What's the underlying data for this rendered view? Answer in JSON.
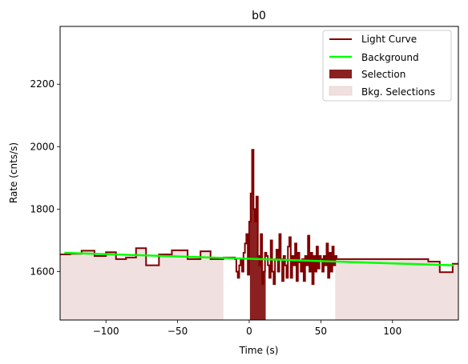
{
  "chart_data": {
    "type": "line",
    "title": "b0",
    "xlabel": "Time (s)",
    "ylabel": "Rate (cnts/s)",
    "xlim": [
      -132,
      146
    ],
    "ylim": [
      1445,
      2385
    ],
    "xticks": [
      -100,
      -50,
      0,
      50,
      100
    ],
    "xtick_labels": [
      "−100",
      "−50",
      "0",
      "50",
      "100"
    ],
    "yticks": [
      1600,
      1800,
      2000,
      2200
    ],
    "ytick_labels": [
      "1600",
      "1800",
      "2000",
      "2200"
    ],
    "grid": false,
    "legend_position": "top-right",
    "legend": [
      {
        "key": "light_curve",
        "label": "Light Curve"
      },
      {
        "key": "background",
        "label": "Background"
      },
      {
        "key": "selection",
        "label": "Selection"
      },
      {
        "key": "bkg_selections",
        "label": "Bkg. Selections"
      }
    ],
    "colors": {
      "light_curve": "#800000",
      "background": "#00ff00",
      "selection": "#8b2020",
      "bkg_selections": "#f0e0e0"
    },
    "background_line": {
      "x": [
        -129,
        143
      ],
      "y": [
        1660,
        1620
      ]
    },
    "selection_interval": [
      0.5,
      11.5
    ],
    "bkg_selections": [
      [
        -132,
        -18
      ],
      [
        60,
        146
      ]
    ],
    "light_curve": {
      "x": [
        -132,
        -125,
        -117,
        -108,
        -100,
        -93,
        -86,
        -79,
        -72,
        -63,
        -54,
        -43,
        -34,
        -27,
        -18,
        -10,
        -9,
        -8,
        -7,
        -6,
        -5,
        -4,
        -3,
        -2,
        -1,
        0,
        1,
        2,
        3,
        4,
        5,
        6,
        7,
        8,
        9,
        10,
        11,
        12,
        13,
        14,
        15,
        16,
        17,
        18,
        19,
        20,
        21,
        22,
        23,
        24,
        25,
        26,
        27,
        28,
        29,
        30,
        31,
        32,
        33,
        34,
        35,
        36,
        37,
        38,
        39,
        40,
        41,
        42,
        43,
        44,
        45,
        46,
        47,
        48,
        49,
        50,
        51,
        52,
        53,
        54,
        55,
        56,
        57,
        58,
        59,
        60,
        61,
        125,
        133,
        142,
        146
      ],
      "y": [
        1655,
        1657,
        1667,
        1650,
        1662,
        1640,
        1645,
        1675,
        1620,
        1655,
        1668,
        1640,
        1665,
        1640,
        1645,
        1640,
        1600,
        1580,
        1620,
        1640,
        1600,
        1660,
        1690,
        1720,
        1590,
        1760,
        1850,
        1990,
        1800,
        1760,
        1840,
        1650,
        1620,
        1720,
        1560,
        1600,
        1660,
        1650,
        1620,
        1580,
        1700,
        1600,
        1560,
        1640,
        1670,
        1600,
        1720,
        1640,
        1570,
        1650,
        1620,
        1580,
        1680,
        1710,
        1580,
        1650,
        1620,
        1690,
        1570,
        1660,
        1630,
        1600,
        1640,
        1570,
        1650,
        1620,
        1715,
        1600,
        1660,
        1560,
        1650,
        1600,
        1680,
        1610,
        1650,
        1640,
        1600,
        1650,
        1620,
        1690,
        1580,
        1660,
        1600,
        1680,
        1620,
        1650,
        1640,
        1632,
        1598,
        1625,
        1625
      ]
    }
  }
}
